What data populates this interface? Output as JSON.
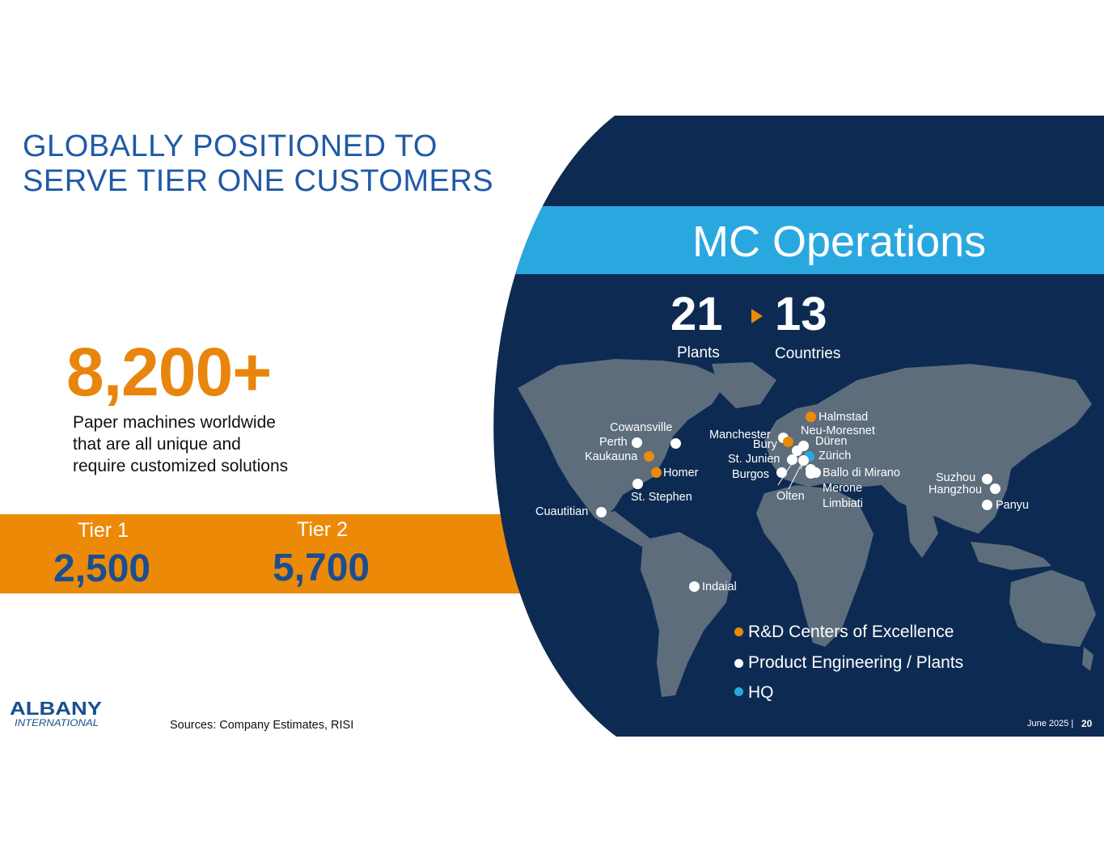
{
  "title": {
    "line1": "GLOBALLY POSITIONED TO",
    "line2": "SERVE TIER ONE CUSTOMERS"
  },
  "headline_stat": {
    "value": "8,200+",
    "desc_line1": "Paper machines worldwide",
    "desc_line2": "that are all unique and",
    "desc_line3": "require customized solutions"
  },
  "tiers": [
    {
      "label": "Tier 1",
      "value": "2,500"
    },
    {
      "label": "Tier 2",
      "value": "5,700"
    }
  ],
  "panel": {
    "title": "MC Operations",
    "plants": {
      "value": "21",
      "label": "Plants"
    },
    "countries": {
      "value": "13",
      "label": "Countries"
    }
  },
  "cities": {
    "cowansville": "Cowansville",
    "perth": "Perth",
    "kaukauna": "Kaukauna",
    "homer": "Homer",
    "st_stephen": "St. Stephen",
    "cuautitian": "Cuautitian",
    "indaial": "Indaial",
    "manchester": "Manchester",
    "bury": "Bury",
    "st_junien": "St. Junien",
    "burgos": "Burgos",
    "olten": "Olten",
    "halmstad": "Halmstad",
    "neu_moresnet": "Neu-Moresnet",
    "duren": "Düren",
    "zurich": "Zürich",
    "ballo": "Ballo di Mirano",
    "merone": "Merone",
    "limbiati": "Limbiati",
    "suzhou": "Suzhou",
    "hangzhou": "Hangzhou",
    "panyu": "Panyu"
  },
  "legend": [
    {
      "label": "R&D Centers of Excellence",
      "color": "#ec8a08"
    },
    {
      "label": "Product Engineering / Plants",
      "color": "#ffffff"
    },
    {
      "label": "HQ",
      "color": "#29a8e0"
    }
  ],
  "footer": {
    "sources": "Sources: Company Estimates, RISI",
    "date": "June 2025 |",
    "page": "20"
  },
  "logo": {
    "line1": "ALBANY",
    "line2": "INTERNATIONAL"
  },
  "colors": {
    "navy": "#0d2b52",
    "accent_blue": "#29a8e0",
    "orange": "#ec8a08",
    "title_blue": "#1f5aa6"
  }
}
